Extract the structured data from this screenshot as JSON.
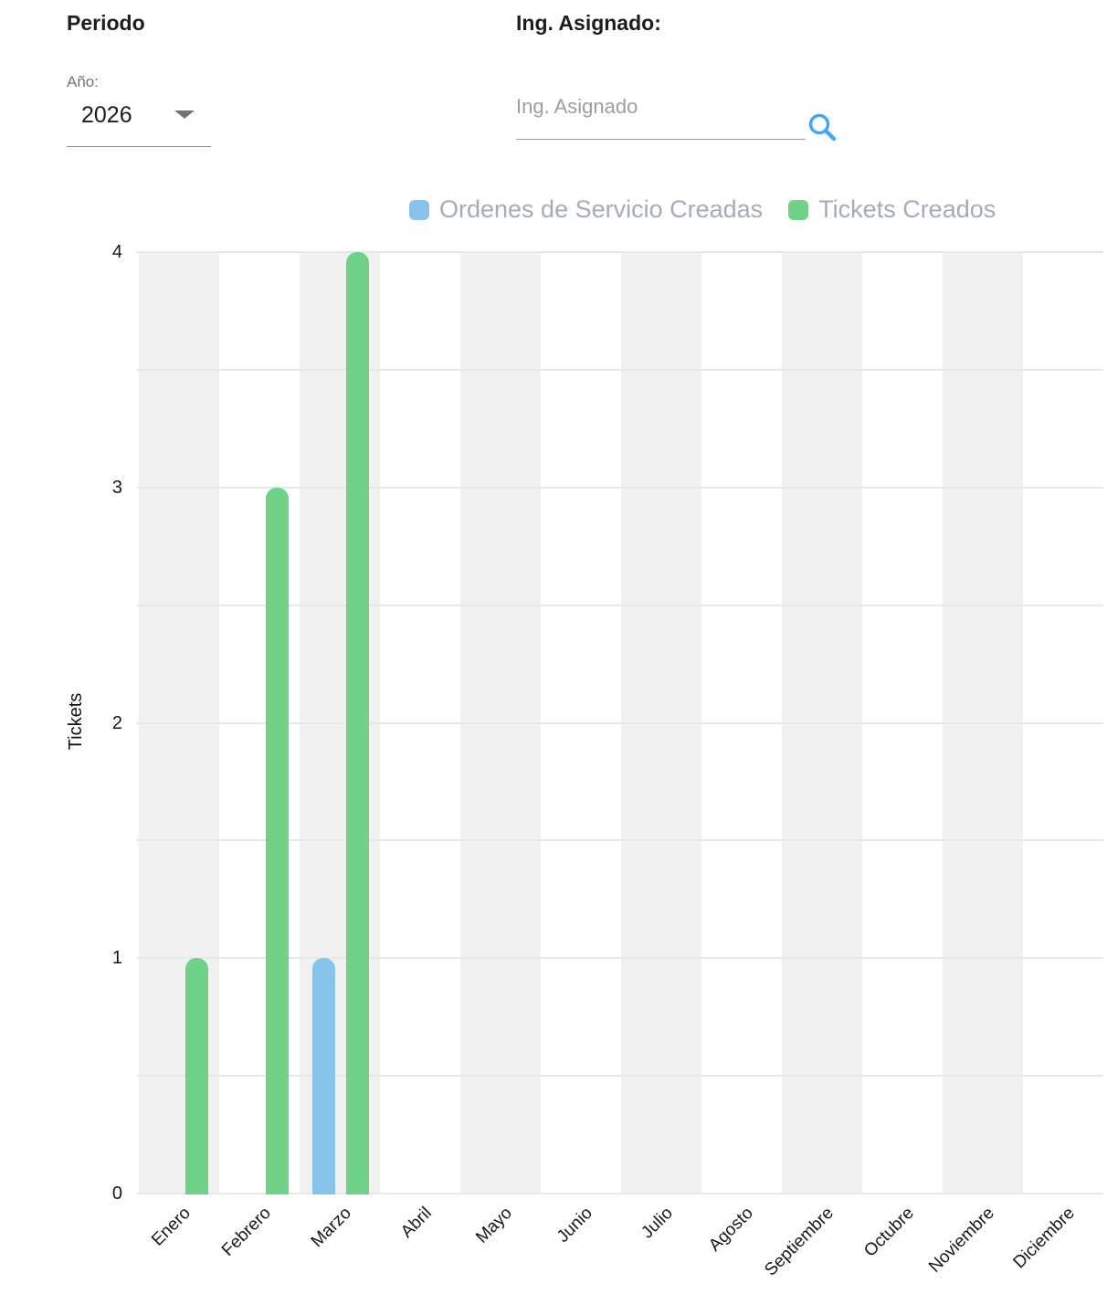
{
  "filters": {
    "periodo_title": "Periodo",
    "year_label": "Año:",
    "year_value": "2026",
    "ing_title": "Ing. Asignado:",
    "search_placeholder": "Ing. Asignado",
    "search_icon_color": "#42a5f5"
  },
  "chart_data": {
    "type": "bar",
    "title": "",
    "xlabel": "",
    "ylabel": "Tickets",
    "categories": [
      "Enero",
      "Febrero",
      "Marzo",
      "Abril",
      "Mayo",
      "Junio",
      "Julio",
      "Agosto",
      "Septiembre",
      "Octubre",
      "Noviembre",
      "Diciembre"
    ],
    "series": [
      {
        "name": "Ordenes de Servicio Creadas",
        "color": "#87c3ea",
        "values": [
          0,
          0,
          1,
          0,
          0,
          0,
          0,
          0,
          0,
          0,
          0,
          0
        ]
      },
      {
        "name": "Tickets Creados",
        "color": "#70d289",
        "values": [
          1,
          3,
          4,
          0,
          0,
          0,
          0,
          0,
          0,
          0,
          0,
          0
        ]
      }
    ],
    "ylim": [
      0,
      4
    ],
    "yticks": [
      0,
      1,
      2,
      3,
      4
    ],
    "grid_step": 0.5,
    "grid": true,
    "legend_position": "top",
    "band_fill": "#f1f1f1",
    "gridline_color": "#e7e7e7",
    "legend_text_color": "#a6abb8"
  }
}
